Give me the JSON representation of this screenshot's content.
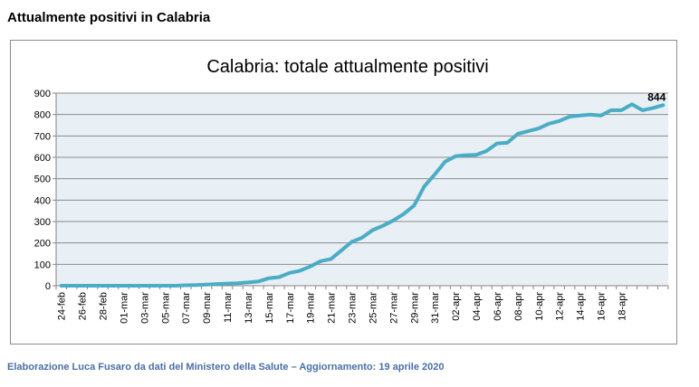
{
  "page": {
    "heading": "Attualmente positivi in Calabria",
    "footer": "Elaborazione  Luca Fusaro da dati del Ministero della Salute – Aggiornamento: 19 aprile 2020"
  },
  "chart_data": {
    "type": "line",
    "title": "Calabria: totale attualmente positivi",
    "xlabel": "",
    "ylabel": "",
    "ylim": [
      0,
      900
    ],
    "yticks": [
      0,
      100,
      200,
      300,
      400,
      500,
      600,
      700,
      800,
      900
    ],
    "grid": true,
    "x_tick_labels": [
      "24-feb",
      "26-feb",
      "28-feb",
      "01-mar",
      "03-mar",
      "05-mar",
      "07-mar",
      "09-mar",
      "11-mar",
      "13-mar",
      "15-mar",
      "17-mar",
      "19-mar",
      "21-mar",
      "23-mar",
      "25-mar",
      "27-mar",
      "29-mar",
      "31-mar",
      "02-apr",
      "04-apr",
      "06-apr",
      "08-apr",
      "10-apr",
      "12-apr",
      "14-apr",
      "16-apr",
      "18-apr"
    ],
    "series": [
      {
        "values": [
          0,
          0,
          0,
          0,
          0,
          0,
          0,
          0,
          0,
          0,
          0,
          0,
          2,
          3,
          5,
          8,
          10,
          12,
          15,
          20,
          35,
          40,
          60,
          70,
          90,
          115,
          125,
          165,
          205,
          225,
          260,
          280,
          305,
          335,
          375,
          465,
          520,
          580,
          605,
          610,
          612,
          630,
          665,
          668,
          710,
          722,
          735,
          757,
          770,
          790,
          795,
          800,
          795,
          820,
          820,
          848,
          820,
          830,
          844
        ]
      }
    ],
    "last_label": "844",
    "colors": {
      "line": "#4bacc6",
      "plot_bg": "#e8eff5",
      "grid": "#8d8d8d"
    }
  }
}
